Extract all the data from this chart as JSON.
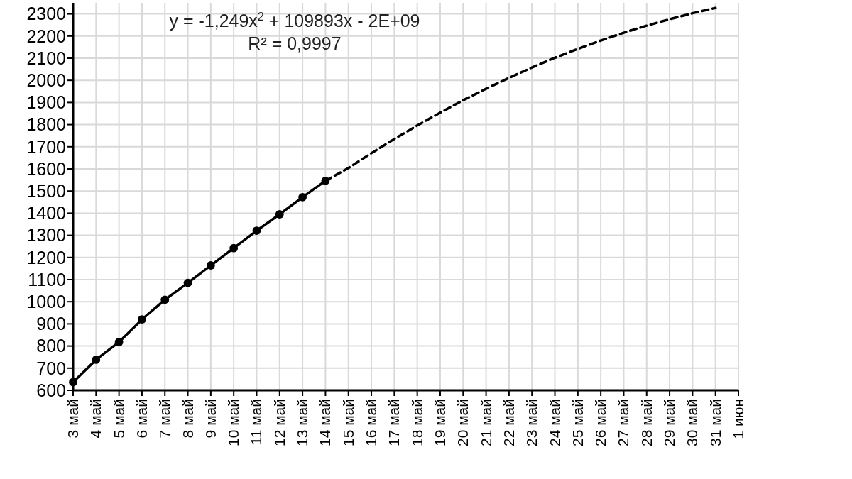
{
  "chart_data": {
    "type": "line",
    "categories": [
      "3 май",
      "4 май",
      "5 май",
      "6 май",
      "7 май",
      "8 май",
      "9 май",
      "10 май",
      "11 май",
      "12 май",
      "13 май",
      "14 май",
      "15 май",
      "16 май",
      "17 май",
      "18 май",
      "19 май",
      "20 май",
      "21 май",
      "22 май",
      "23 май",
      "24 май",
      "25 май",
      "26 май",
      "27 май",
      "28 май",
      "29 май",
      "30 май",
      "31 май",
      "1 июн"
    ],
    "series": [
      {
        "color": "#000000",
        "marker": "circle",
        "line_style": "solid",
        "values": [
          637,
          738,
          818,
          920,
          1009,
          1085,
          1164,
          1242,
          1321,
          1395,
          1472,
          1546,
          null,
          null,
          null,
          null,
          null,
          null,
          null,
          null,
          null,
          null,
          null,
          null,
          null,
          null,
          null,
          null,
          null,
          null
        ]
      },
      {
        "color": "#000000",
        "marker": "none",
        "line_style": "dashed",
        "values": [
          null,
          null,
          null,
          null,
          null,
          null,
          null,
          null,
          null,
          null,
          null,
          1546,
          1604,
          1671,
          1735,
          1796,
          1854,
          1910,
          1962,
          2011,
          2058,
          2102,
          2142,
          2180,
          2215,
          2247,
          2276,
          2303,
          2327,
          null
        ]
      }
    ],
    "ylim": [
      600,
      2350
    ],
    "yticks": [
      600,
      700,
      800,
      900,
      1000,
      1100,
      1200,
      1300,
      1400,
      1500,
      1600,
      1700,
      1800,
      1900,
      2000,
      2100,
      2200,
      2300
    ],
    "grid": true,
    "annotations": [
      "y = -1,249x$^{2}$ + 109893x - 2E+09",
      "R² = 0,9997"
    ]
  }
}
